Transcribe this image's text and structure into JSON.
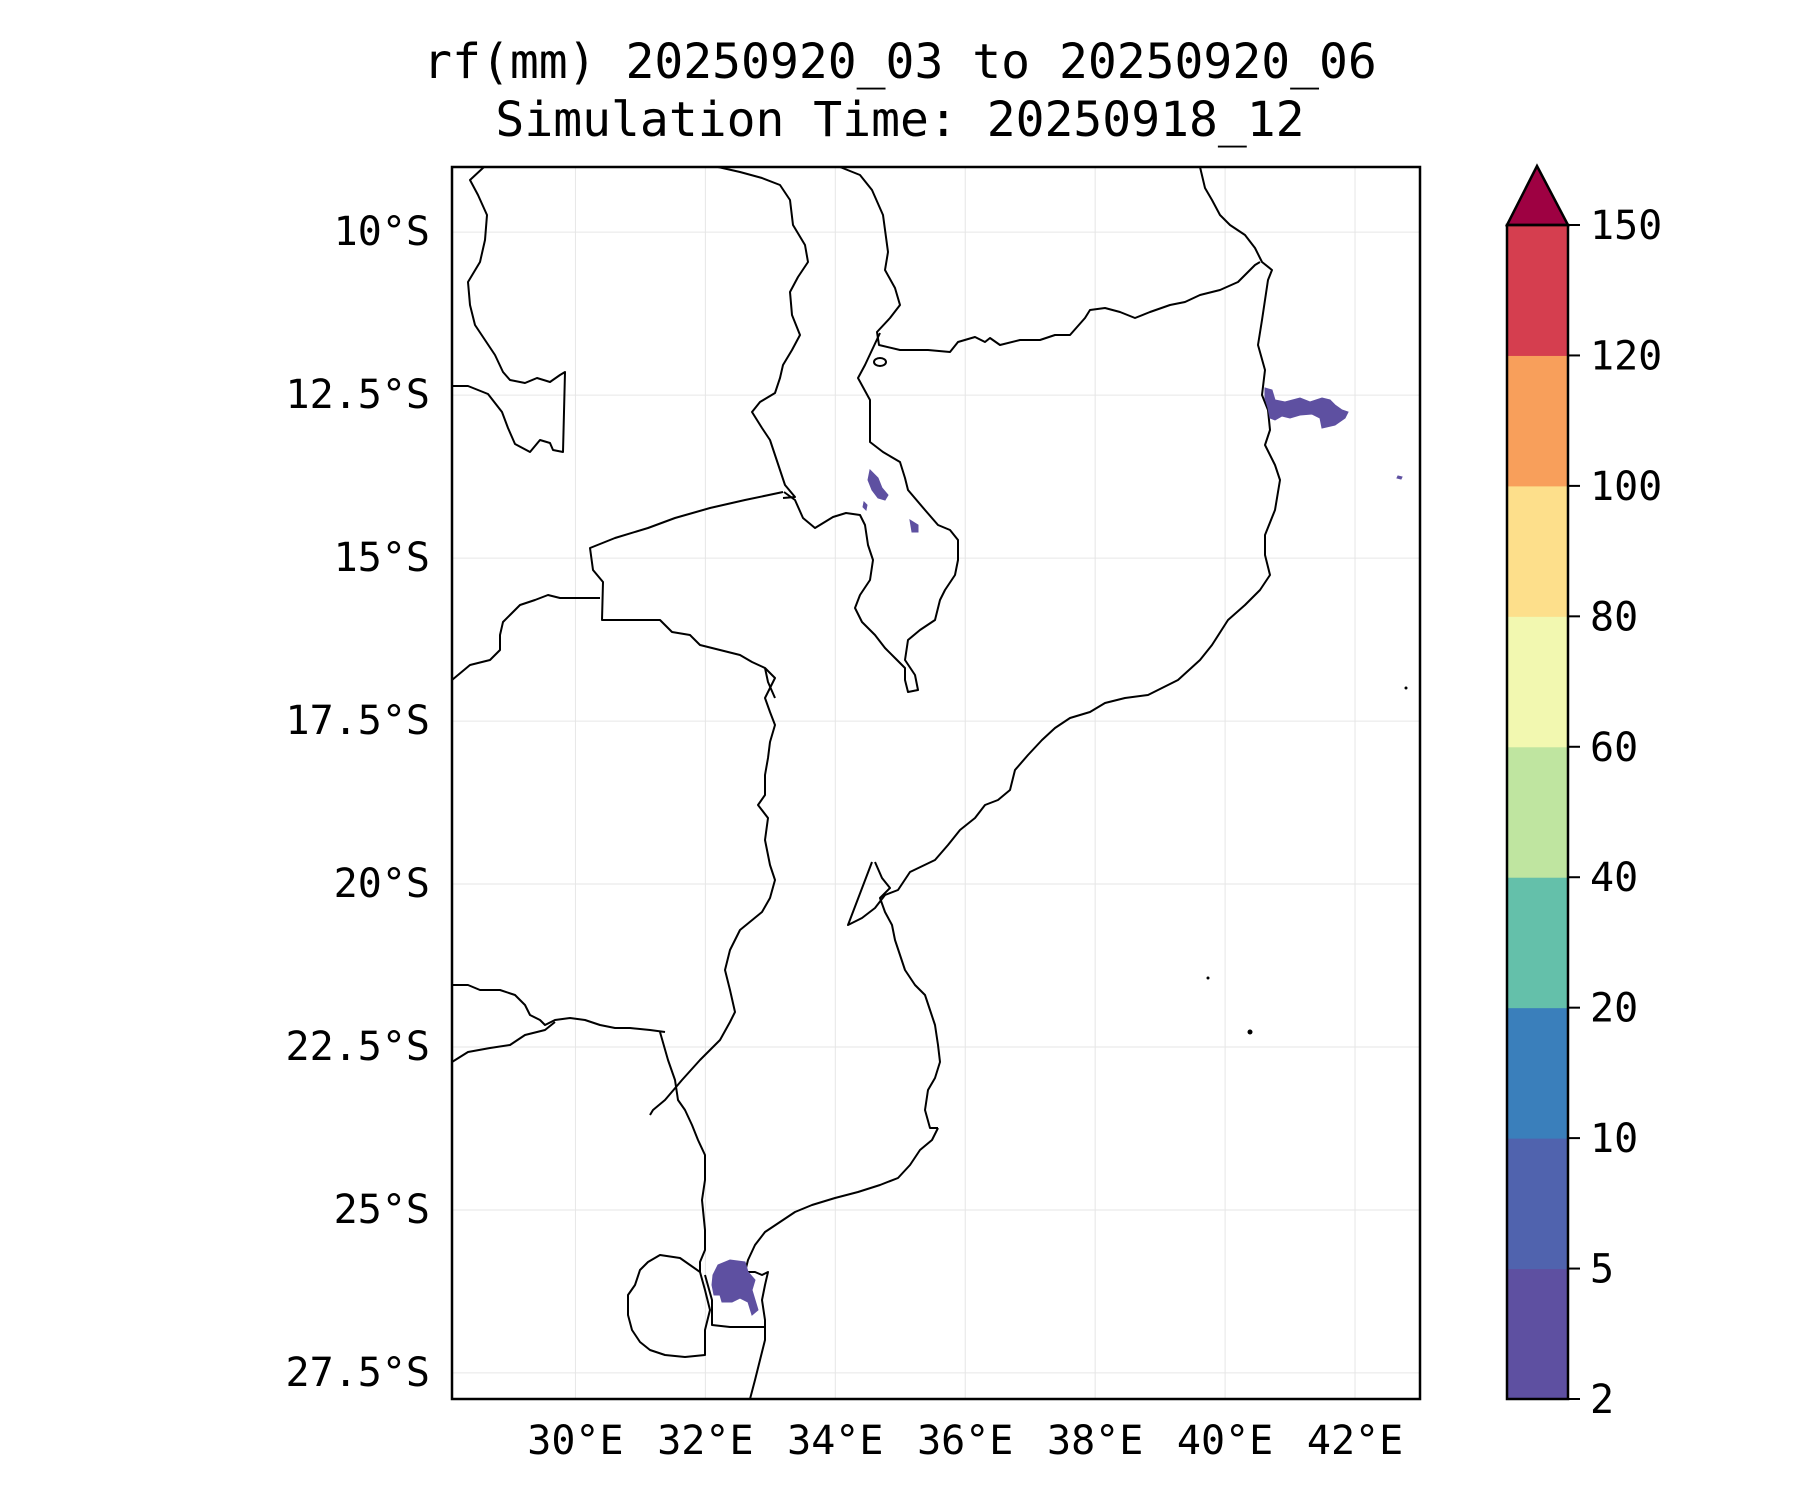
{
  "title": {
    "line1": "rf(mm) 20250920_03 to 20250920_06",
    "line2": "Simulation Time: 20250918_12"
  },
  "map": {
    "lon_range": [
      28.1,
      43.0
    ],
    "lat_range": [
      -9.0,
      -27.9
    ],
    "x_ticks": [
      "30°E",
      "32°E",
      "34°E",
      "36°E",
      "38°E",
      "40°E",
      "42°E"
    ],
    "x_tick_values": [
      30,
      32,
      34,
      36,
      38,
      40,
      42
    ],
    "y_ticks": [
      "10°S",
      "12.5°S",
      "15°S",
      "17.5°S",
      "20°S",
      "22.5°S",
      "25°S",
      "27.5°S"
    ],
    "y_tick_values": [
      -10,
      -12.5,
      -15,
      -17.5,
      -20,
      -22.5,
      -25,
      -27.5
    ],
    "gridlines": true,
    "borders_color": "#000000",
    "rain_color": "#5e50a1"
  },
  "colorbar": {
    "levels": [
      "2",
      "5",
      "10",
      "20",
      "40",
      "60",
      "80",
      "100",
      "120",
      "150"
    ],
    "colors": [
      "#5e50a1",
      "#5063ae",
      "#3a7fbb",
      "#64c0aa",
      "#bfe5a0",
      "#f2f8b0",
      "#fddf8b",
      "#f89f5b",
      "#d53e4f"
    ],
    "extend_color": "#9e0142"
  },
  "rain_areas": [
    {
      "name": "northeast-coast",
      "approx_lon": 41.0,
      "approx_lat": -12.8
    },
    {
      "name": "lake-malawi-north",
      "approx_lon": 34.6,
      "approx_lat": -14.0
    },
    {
      "name": "lake-malawi-small",
      "approx_lon": 35.2,
      "approx_lat": -15.2
    },
    {
      "name": "maputo",
      "approx_lon": 32.4,
      "approx_lat": -26.1
    }
  ]
}
